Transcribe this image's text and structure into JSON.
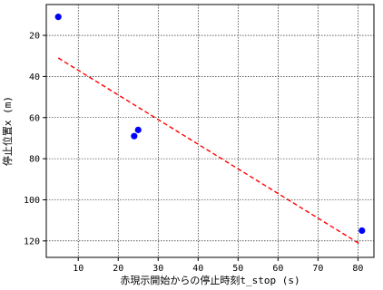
{
  "chart_data": {
    "type": "scatter",
    "title": "",
    "xlabel": "赤現示開始からの停止時刻t_stop (s)",
    "ylabel": "停止位置x (m)",
    "xlim": [
      2,
      84
    ],
    "ylim": [
      128,
      5
    ],
    "y_inverted": true,
    "x_ticks": [
      10,
      20,
      30,
      40,
      50,
      60,
      70,
      80
    ],
    "y_ticks": [
      20,
      40,
      60,
      80,
      100,
      120
    ],
    "grid": true,
    "grid_style": "dotted",
    "series": [
      {
        "kind": "scatter",
        "color": "#0000ff",
        "points": [
          {
            "x": 5,
            "y": 11
          },
          {
            "x": 24,
            "y": 69
          },
          {
            "x": 25,
            "y": 66
          },
          {
            "x": 81,
            "y": 115
          }
        ]
      },
      {
        "kind": "line",
        "style": "dashed",
        "color": "#ff0000",
        "points": [
          {
            "x": 5,
            "y": 31
          },
          {
            "x": 80.5,
            "y": 121.5
          }
        ]
      }
    ]
  }
}
